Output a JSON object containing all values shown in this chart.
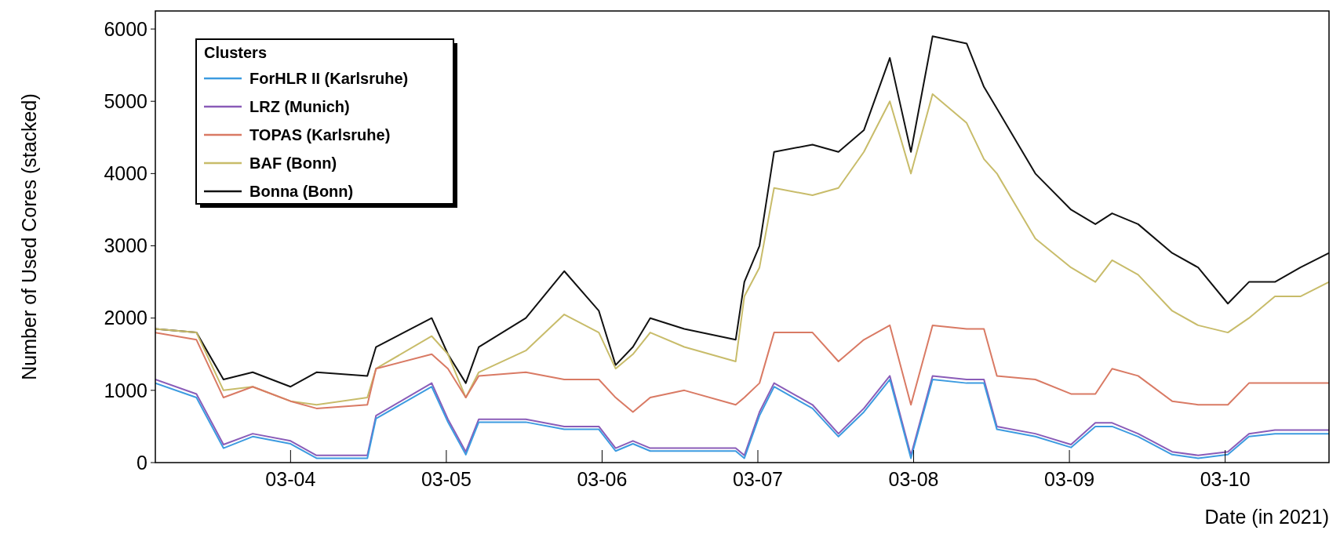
{
  "chart_data": {
    "type": "line",
    "xlabel": "Date (in 2021)",
    "ylabel": "Number of Used Cores (stacked)",
    "legend_title": "Clusters",
    "legend": "top left",
    "grid": false,
    "x": [
      "2021-03-03T03:10",
      "2021-03-03T09:30",
      "2021-03-03T13:40",
      "2021-03-03T18:10",
      "2021-03-04T00:00",
      "2021-03-04T04:00",
      "2021-03-04T11:50",
      "2021-03-04T13:10",
      "2021-03-04T21:45",
      "2021-03-05T00:15",
      "2021-03-05T03:00",
      "2021-03-05T05:00",
      "2021-03-05T12:15",
      "2021-03-05T18:10",
      "2021-03-05T23:30",
      "2021-03-06T02:05",
      "2021-03-06T04:45",
      "2021-03-06T07:25",
      "2021-03-06T12:40",
      "2021-03-06T20:35",
      "2021-03-06T21:55",
      "2021-03-07T00:15",
      "2021-03-07T02:30",
      "2021-03-07T08:25",
      "2021-03-07T12:25",
      "2021-03-07T16:20",
      "2021-03-07T20:20",
      "2021-03-07T23:35",
      "2021-03-08T02:55",
      "2021-03-08T08:10",
      "2021-03-08T10:50",
      "2021-03-08T12:50",
      "2021-03-08T18:45",
      "2021-03-09T00:15",
      "2021-03-09T04:00",
      "2021-03-09T06:35",
      "2021-03-09T10:35",
      "2021-03-09T15:50",
      "2021-03-09T19:50",
      "2021-03-10T00:25",
      "2021-03-10T03:40",
      "2021-03-10T07:40",
      "2021-03-10T11:35",
      "2021-03-10T16:00"
    ],
    "xlim": [
      "2021-03-03T03:10",
      "2021-03-10T16:00"
    ],
    "xticks": [
      {
        "value": "2021-03-04",
        "label": "03-04"
      },
      {
        "value": "2021-03-05",
        "label": "03-05"
      },
      {
        "value": "2021-03-06",
        "label": "03-06"
      },
      {
        "value": "2021-03-07",
        "label": "03-07"
      },
      {
        "value": "2021-03-08",
        "label": "03-08"
      },
      {
        "value": "2021-03-09",
        "label": "03-09"
      },
      {
        "value": "2021-03-10",
        "label": "03-10"
      }
    ],
    "ylim": [
      0,
      6250
    ],
    "yticks": [
      0,
      1000,
      2000,
      3000,
      4000,
      5000,
      6000
    ],
    "series": [
      {
        "name": "ForHLR II (Karlsruhe)",
        "color": "#3c9be0",
        "values": [
          1100,
          900,
          200,
          360,
          260,
          60,
          60,
          610,
          1050,
          560,
          110,
          560,
          560,
          460,
          460,
          160,
          260,
          160,
          160,
          160,
          60,
          650,
          1050,
          750,
          360,
          700,
          1150,
          60,
          1150,
          1100,
          1100,
          460,
          360,
          210,
          500,
          500,
          360,
          110,
          60,
          110,
          360,
          400,
          400,
          400
        ]
      },
      {
        "name": "LRZ (Munich)",
        "color": "#8a5cb8",
        "values": [
          1150,
          950,
          250,
          400,
          300,
          100,
          100,
          650,
          1100,
          600,
          150,
          600,
          600,
          500,
          500,
          200,
          300,
          200,
          200,
          200,
          100,
          700,
          1100,
          800,
          400,
          750,
          1200,
          100,
          1200,
          1150,
          1150,
          500,
          400,
          250,
          550,
          550,
          400,
          150,
          100,
          150,
          400,
          450,
          450,
          450
        ]
      },
      {
        "name": "TOPAS (Karlsruhe)",
        "color": "#d97a64",
        "values": [
          1800,
          1700,
          900,
          1050,
          850,
          750,
          800,
          1300,
          1500,
          1300,
          900,
          1200,
          1250,
          1150,
          1150,
          900,
          700,
          900,
          1000,
          800,
          900,
          1100,
          1800,
          1800,
          1400,
          1700,
          1900,
          800,
          1900,
          1850,
          1850,
          1200,
          1150,
          950,
          950,
          1300,
          1200,
          850,
          800,
          800,
          1100,
          1100,
          1100,
          1100
        ]
      },
      {
        "name": "BAF (Bonn)",
        "color": "#c8bc6a",
        "values": [
          1850,
          1800,
          1000,
          1050,
          850,
          800,
          900,
          1300,
          1750,
          1500,
          900,
          1250,
          1550,
          2050,
          1800,
          1300,
          1500,
          1800,
          1600,
          1400,
          2300,
          2700,
          3800,
          3700,
          3800,
          4300,
          5000,
          4000,
          5100,
          4700,
          4200,
          4000,
          3100,
          2700,
          2500,
          2800,
          2600,
          2100,
          1900,
          1800,
          2000,
          2300,
          2300,
          2500
        ]
      },
      {
        "name": "Bonna (Bonn)",
        "color": "#111111",
        "values": [
          1850,
          1800,
          1150,
          1250,
          1050,
          1250,
          1200,
          1600,
          2000,
          1500,
          1100,
          1600,
          2000,
          2650,
          2100,
          1350,
          1600,
          2000,
          1850,
          1700,
          2500,
          3000,
          4300,
          4400,
          4300,
          4600,
          5600,
          4300,
          5900,
          5800,
          5200,
          4900,
          4000,
          3500,
          3300,
          3450,
          3300,
          2900,
          2700,
          2200,
          2500,
          2500,
          2700,
          2900
        ]
      }
    ]
  }
}
